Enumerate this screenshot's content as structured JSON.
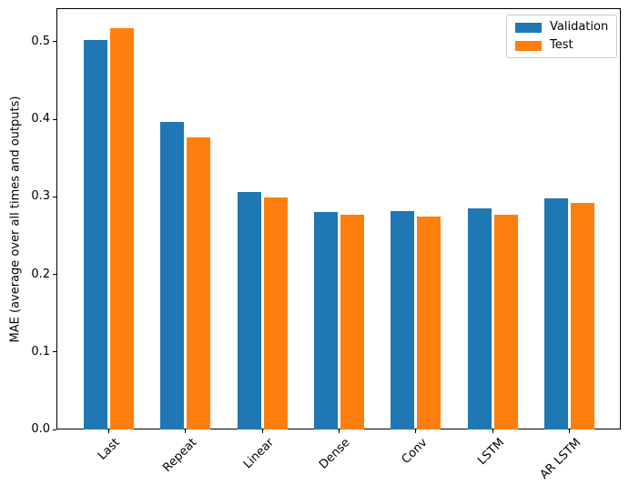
{
  "chart_data": {
    "type": "bar",
    "title": "",
    "xlabel": "",
    "ylabel": "MAE (average over all times and outputs)",
    "categories": [
      "Last",
      "Repeat",
      "Linear",
      "Dense",
      "Conv",
      "LSTM",
      "AR LSTM"
    ],
    "series": [
      {
        "name": "Validation",
        "color": "#1f77b4",
        "values": [
          0.502,
          0.396,
          0.306,
          0.28,
          0.281,
          0.285,
          0.298
        ]
      },
      {
        "name": "Test",
        "color": "#ff7f0e",
        "values": [
          0.517,
          0.377,
          0.299,
          0.277,
          0.275,
          0.277,
          0.292
        ]
      }
    ],
    "ylim": [
      0,
      0.542
    ],
    "yticks": [
      0.0,
      0.1,
      0.2,
      0.3,
      0.4,
      0.5
    ],
    "ytick_labels": [
      "0.0",
      "0.1",
      "0.2",
      "0.3",
      "0.4",
      "0.5"
    ],
    "xtick_rotation": 45,
    "grid": false,
    "legend_position": "upper right",
    "axis_color": "#000000",
    "background_color": "#ffffff"
  }
}
